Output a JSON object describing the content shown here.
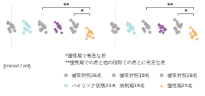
{
  "chart_data": [
    {
      "type": "scatter",
      "ylabel": "(mmol / ml)",
      "annotations": [
        "*慢性期で有意な差",
        "**慢性期での差と他の段階での差とに有意な差"
      ],
      "legend": "bottom",
      "tick_labels": false,
      "grid": false,
      "ylim": [
        4,
        12
      ],
      "brackets": [
        {
          "from": "健常対照19名",
          "to": "慢性期25名",
          "label": "**"
        },
        {
          "from": "健常対照28名",
          "to": "慢性期25名",
          "label": "*"
        }
      ],
      "series": [
        {
          "name": "健常対照26名",
          "color": "#9a9a9a",
          "marker": "circle",
          "values": [
            8.8,
            8.5,
            8.2,
            8.0,
            7.8,
            7.6,
            7.4,
            7.9,
            8.3,
            7.2,
            8.6,
            7.0
          ]
        },
        {
          "name": "ハイリスク状態24名",
          "color": "#a6dadc",
          "marker": "circle",
          "values": [
            9.0,
            8.7,
            8.4,
            8.1,
            7.9,
            7.7,
            7.5,
            7.3,
            8.2,
            7.0,
            6.8,
            8.5
          ]
        },
        {
          "name": "健常対照19名",
          "color": "#9a9a9a",
          "marker": "circle",
          "values": [
            8.9,
            8.6,
            8.3,
            8.1,
            7.8,
            7.5,
            7.2,
            8.0,
            7.7,
            6.9,
            8.4,
            7.4
          ]
        },
        {
          "name": "病初期19名",
          "color": "#7b3f8f",
          "marker": "diamond",
          "values": [
            8.8,
            8.4,
            8.1,
            7.9,
            7.6,
            7.3,
            7.0,
            7.8,
            8.2,
            6.8,
            7.5,
            8.6
          ]
        },
        {
          "name": "健常対照28名",
          "color": "#9a9a9a",
          "marker": "circle",
          "values": [
            9.2,
            8.8,
            8.5,
            8.2,
            7.9,
            7.6,
            7.3,
            8.0,
            7.1,
            8.4,
            7.7,
            6.9
          ]
        },
        {
          "name": "慢性期25名",
          "color": "#f0a040",
          "marker": "triangle",
          "values": [
            7.8,
            7.5,
            7.2,
            7.0,
            6.8,
            6.6,
            6.4,
            6.2,
            7.1,
            6.0,
            5.8,
            6.9
          ]
        }
      ]
    },
    {
      "type": "scatter",
      "tick_labels": false,
      "grid": false,
      "ylim": [
        4,
        12
      ],
      "brackets": [
        {
          "from": "健常対照19名",
          "to": "慢性期25名",
          "label": "**"
        },
        {
          "from": "健常対照28名",
          "to": "慢性期25名",
          "label": "*"
        }
      ],
      "series": [
        {
          "name": "健常対照26名",
          "color": "#9a9a9a",
          "marker": "circle",
          "values": [
            8.6,
            8.3,
            8.0,
            7.7,
            7.5,
            7.2,
            7.9,
            8.2,
            7.0,
            7.6,
            8.4,
            6.9
          ]
        },
        {
          "name": "ハイリスク状態24名",
          "color": "#a6dadc",
          "marker": "circle",
          "values": [
            8.7,
            8.4,
            8.1,
            7.8,
            7.6,
            7.3,
            7.1,
            8.0,
            7.5,
            6.8,
            8.3,
            7.7
          ]
        },
        {
          "name": "健常対照19名",
          "color": "#9a9a9a",
          "marker": "circle",
          "values": [
            9.0,
            8.6,
            8.3,
            8.0,
            7.7,
            7.4,
            7.1,
            7.9,
            8.2,
            6.9,
            7.6,
            8.5
          ]
        },
        {
          "name": "病初期19名",
          "color": "#7b3f8f",
          "marker": "diamond",
          "values": [
            8.4,
            8.1,
            7.8,
            7.6,
            7.3,
            7.0,
            7.7,
            8.0,
            6.8,
            7.5,
            8.2,
            7.2
          ]
        },
        {
          "name": "健常対照28名",
          "color": "#9a9a9a",
          "marker": "circle",
          "values": [
            9.3,
            8.9,
            8.5,
            8.2,
            7.9,
            7.6,
            7.3,
            8.1,
            7.0,
            8.4,
            7.7,
            6.8
          ]
        },
        {
          "name": "慢性期25名",
          "color": "#f0a040",
          "marker": "triangle",
          "values": [
            7.9,
            7.5,
            7.2,
            6.9,
            6.6,
            6.3,
            6.0,
            7.0,
            6.5,
            5.7,
            6.8,
            6.2
          ]
        }
      ]
    }
  ]
}
